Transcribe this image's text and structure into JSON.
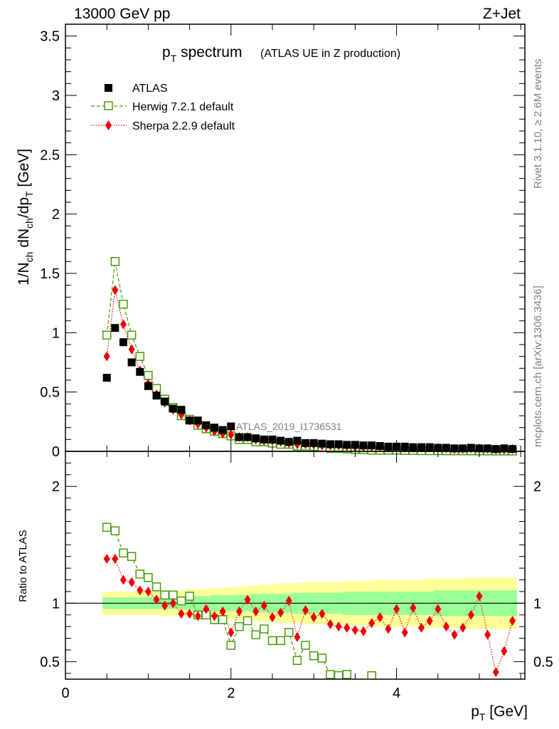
{
  "header": {
    "left": "13000 GeV pp",
    "right": "Z+Jet"
  },
  "side": {
    "rivet": "Rivet 3.1.10, ≥ 2.6M events",
    "mcplots": "mcplots.cern.ch [arXiv:1306.3436]"
  },
  "watermark": "ATLAS_2019_I1736531",
  "colors": {
    "atlas": "#000000",
    "herwig": "#4a9a0a",
    "sherpa": "#ee0000",
    "band_inner": "#99ff99",
    "band_outer": "#ffff99"
  },
  "chart_data": [
    {
      "type": "scatter",
      "title": "p_T spectrum",
      "title_main": "p",
      "title_sub": "T",
      "title_rest": " spectrum",
      "subtitle": "(ATLAS UE in Z production)",
      "ylabel": "1/N_ch dN_ch/dp_T [GeV]",
      "ylabel_parts": [
        "1/N",
        "ch",
        " dN",
        "ch",
        "/dp",
        "T",
        " [GeV]"
      ],
      "xlim": [
        0,
        5.55
      ],
      "ylim": [
        0,
        3.6
      ],
      "yticks": [
        "0",
        "0.5",
        "1",
        "1.5",
        "2",
        "2.5",
        "3",
        "3.5"
      ],
      "legend_position": "top-left",
      "x": [
        0.5,
        0.6,
        0.7,
        0.8,
        0.9,
        1.0,
        1.1,
        1.2,
        1.3,
        1.4,
        1.5,
        1.6,
        1.7,
        1.8,
        1.9,
        2.0,
        2.1,
        2.2,
        2.3,
        2.4,
        2.5,
        2.6,
        2.7,
        2.8,
        2.9,
        3.0,
        3.1,
        3.2,
        3.3,
        3.4,
        3.5,
        3.6,
        3.7,
        3.8,
        3.9,
        4.0,
        4.1,
        4.2,
        4.3,
        4.4,
        4.5,
        4.6,
        4.7,
        4.8,
        4.9,
        5.0,
        5.1,
        5.2,
        5.3,
        5.4
      ],
      "series": [
        {
          "name": "ATLAS",
          "values": [
            0.62,
            1.04,
            0.92,
            0.75,
            0.67,
            0.55,
            0.47,
            0.42,
            0.36,
            0.35,
            0.26,
            0.26,
            0.22,
            0.2,
            0.18,
            0.21,
            0.12,
            0.12,
            0.11,
            0.1,
            0.1,
            0.09,
            0.08,
            0.09,
            0.07,
            0.07,
            0.065,
            0.06,
            0.06,
            0.055,
            0.055,
            0.05,
            0.05,
            0.045,
            0.04,
            0.04,
            0.04,
            0.035,
            0.035,
            0.035,
            0.03,
            0.03,
            0.025,
            0.025,
            0.03,
            0.025,
            0.025,
            0.02,
            0.025,
            0.02
          ]
        },
        {
          "name": "Herwig 7.2.1 default",
          "values": [
            0.98,
            1.6,
            1.24,
            0.98,
            0.8,
            0.64,
            0.53,
            0.44,
            0.37,
            0.3,
            0.27,
            0.22,
            0.19,
            0.17,
            0.15,
            0.13,
            0.1,
            0.1,
            0.08,
            0.08,
            0.07,
            0.06,
            0.06,
            0.045,
            0.045,
            0.04,
            0.035,
            0.025,
            0.025,
            0.02,
            0.015,
            0.015,
            0.01,
            0.01,
            0.01,
            0.01,
            0.008,
            0.008,
            0.006,
            0.006,
            0.006,
            0.005,
            0.005,
            0.005,
            0.004,
            0.004,
            0.004,
            0.003,
            0.003,
            0.003
          ]
        },
        {
          "name": "Sherpa 2.2.9 default",
          "values": [
            0.8,
            1.36,
            1.07,
            0.86,
            0.68,
            0.57,
            0.48,
            0.41,
            0.35,
            0.31,
            0.26,
            0.23,
            0.2,
            0.17,
            0.15,
            0.14,
            0.12,
            0.12,
            0.1,
            0.09,
            0.09,
            0.08,
            0.07,
            0.06,
            0.06,
            0.06,
            0.05,
            0.05,
            0.05,
            0.045,
            0.04,
            0.04,
            0.04,
            0.04,
            0.03,
            0.035,
            0.03,
            0.03,
            0.03,
            0.03,
            0.03,
            0.025,
            0.02,
            0.02,
            0.025,
            0.025,
            0.02,
            0.015,
            0.015,
            0.02
          ]
        }
      ]
    },
    {
      "type": "scatter",
      "title": "",
      "xlabel": "p_T [GeV]",
      "xlabel_main": "p",
      "xlabel_sub": "T",
      "xlabel_rest": " [GeV]",
      "ylabel": "Ratio to ATLAS",
      "xlim": [
        0,
        5.55
      ],
      "ylim": [
        0.35,
        2.3
      ],
      "xticks": [
        "0",
        "2",
        "4"
      ],
      "yticks": [
        "0.5",
        "1",
        "2"
      ],
      "x": [
        0.5,
        0.6,
        0.7,
        0.8,
        0.9,
        1.0,
        1.1,
        1.2,
        1.3,
        1.4,
        1.5,
        1.6,
        1.7,
        1.8,
        1.9,
        2.0,
        2.1,
        2.2,
        2.3,
        2.4,
        2.5,
        2.6,
        2.7,
        2.8,
        2.9,
        3.0,
        3.1,
        3.2,
        3.3,
        3.4,
        3.5,
        3.6,
        3.7,
        3.8,
        3.9,
        4.0,
        4.1,
        4.2,
        4.3,
        4.4,
        4.5,
        4.6,
        4.7,
        4.8,
        4.9,
        5.0,
        5.1,
        5.2,
        5.3,
        5.4
      ],
      "band_inner": [
        0.05,
        0.05,
        0.05,
        0.05,
        0.05,
        0.05,
        0.05,
        0.05,
        0.05,
        0.05,
        0.06,
        0.06,
        0.06,
        0.07,
        0.07,
        0.07,
        0.07,
        0.07,
        0.08,
        0.08,
        0.08,
        0.08,
        0.08,
        0.09,
        0.09,
        0.09,
        0.09,
        0.09,
        0.09,
        0.1,
        0.1,
        0.1,
        0.1,
        0.1,
        0.1,
        0.1,
        0.1,
        0.1,
        0.1,
        0.1,
        0.11,
        0.11,
        0.11,
        0.11,
        0.11,
        0.11,
        0.11,
        0.11,
        0.11,
        0.11
      ],
      "band_outer": [
        0.1,
        0.1,
        0.1,
        0.1,
        0.1,
        0.1,
        0.1,
        0.11,
        0.11,
        0.11,
        0.12,
        0.12,
        0.12,
        0.13,
        0.13,
        0.14,
        0.14,
        0.15,
        0.15,
        0.16,
        0.16,
        0.17,
        0.17,
        0.17,
        0.18,
        0.18,
        0.18,
        0.18,
        0.18,
        0.19,
        0.19,
        0.19,
        0.19,
        0.2,
        0.2,
        0.2,
        0.2,
        0.2,
        0.2,
        0.21,
        0.21,
        0.21,
        0.21,
        0.21,
        0.22,
        0.22,
        0.22,
        0.22,
        0.22,
        0.22
      ],
      "series": [
        {
          "name": "Herwig 7.2.1 default",
          "values": [
            1.65,
            1.62,
            1.43,
            1.4,
            1.25,
            1.22,
            1.14,
            1.07,
            1.07,
            1.02,
            1.06,
            0.9,
            0.9,
            0.86,
            0.86,
            0.64,
            0.8,
            0.85,
            0.73,
            0.78,
            0.68,
            0.68,
            0.75,
            0.51,
            0.64,
            0.55,
            0.53,
            0.39,
            0.38,
            0.39,
            null,
            null,
            0.38,
            null,
            null,
            null,
            null,
            null,
            null,
            null,
            null,
            null,
            null,
            null,
            null,
            null,
            null,
            null,
            null,
            null
          ]
        },
        {
          "name": "Sherpa 2.2.9 default",
          "values": [
            1.38,
            1.38,
            1.2,
            1.18,
            1.11,
            1.1,
            1.03,
            0.98,
            1.0,
            0.91,
            0.91,
            0.89,
            0.95,
            0.89,
            0.93,
            0.75,
            0.93,
            1.03,
            0.93,
            0.98,
            0.88,
            0.92,
            1.02,
            0.71,
            0.94,
            0.88,
            0.91,
            0.82,
            0.8,
            0.79,
            0.77,
            0.76,
            0.83,
            0.88,
            0.78,
            0.95,
            0.75,
            0.96,
            0.79,
            0.85,
            0.95,
            0.8,
            0.73,
            0.79,
            0.9,
            1.06,
            0.73,
            0.41,
            0.59,
            0.85
          ]
        }
      ]
    }
  ]
}
